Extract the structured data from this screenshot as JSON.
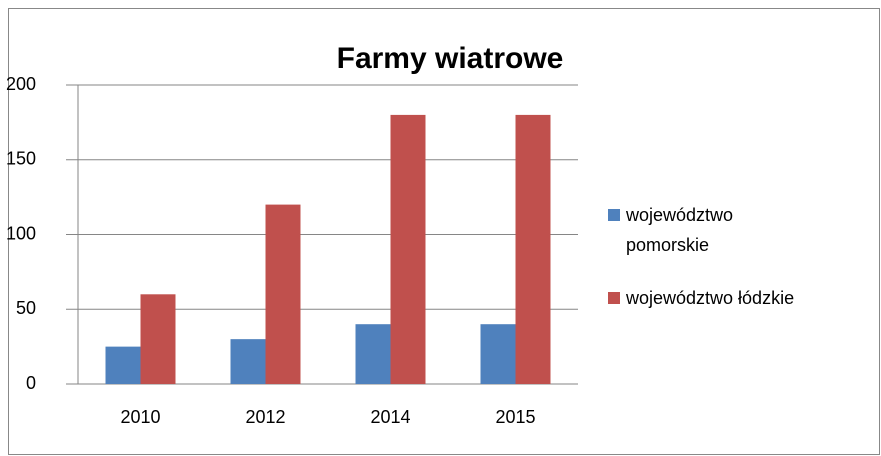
{
  "chart_data": {
    "type": "bar",
    "title": "Farmy wiatrowe",
    "categories": [
      "2010",
      "2012",
      "2014",
      "2015"
    ],
    "series": [
      {
        "name": "województwo pomorskie",
        "color": "#4f81bd",
        "values": [
          25,
          30,
          40,
          40
        ]
      },
      {
        "name": "województwo łódzkie",
        "color": "#c0504d",
        "values": [
          60,
          120,
          180,
          180
        ]
      }
    ],
    "ylim": [
      0,
      200
    ],
    "yticks": [
      0,
      50,
      100,
      150,
      200
    ],
    "grid": true,
    "legend": "right"
  }
}
